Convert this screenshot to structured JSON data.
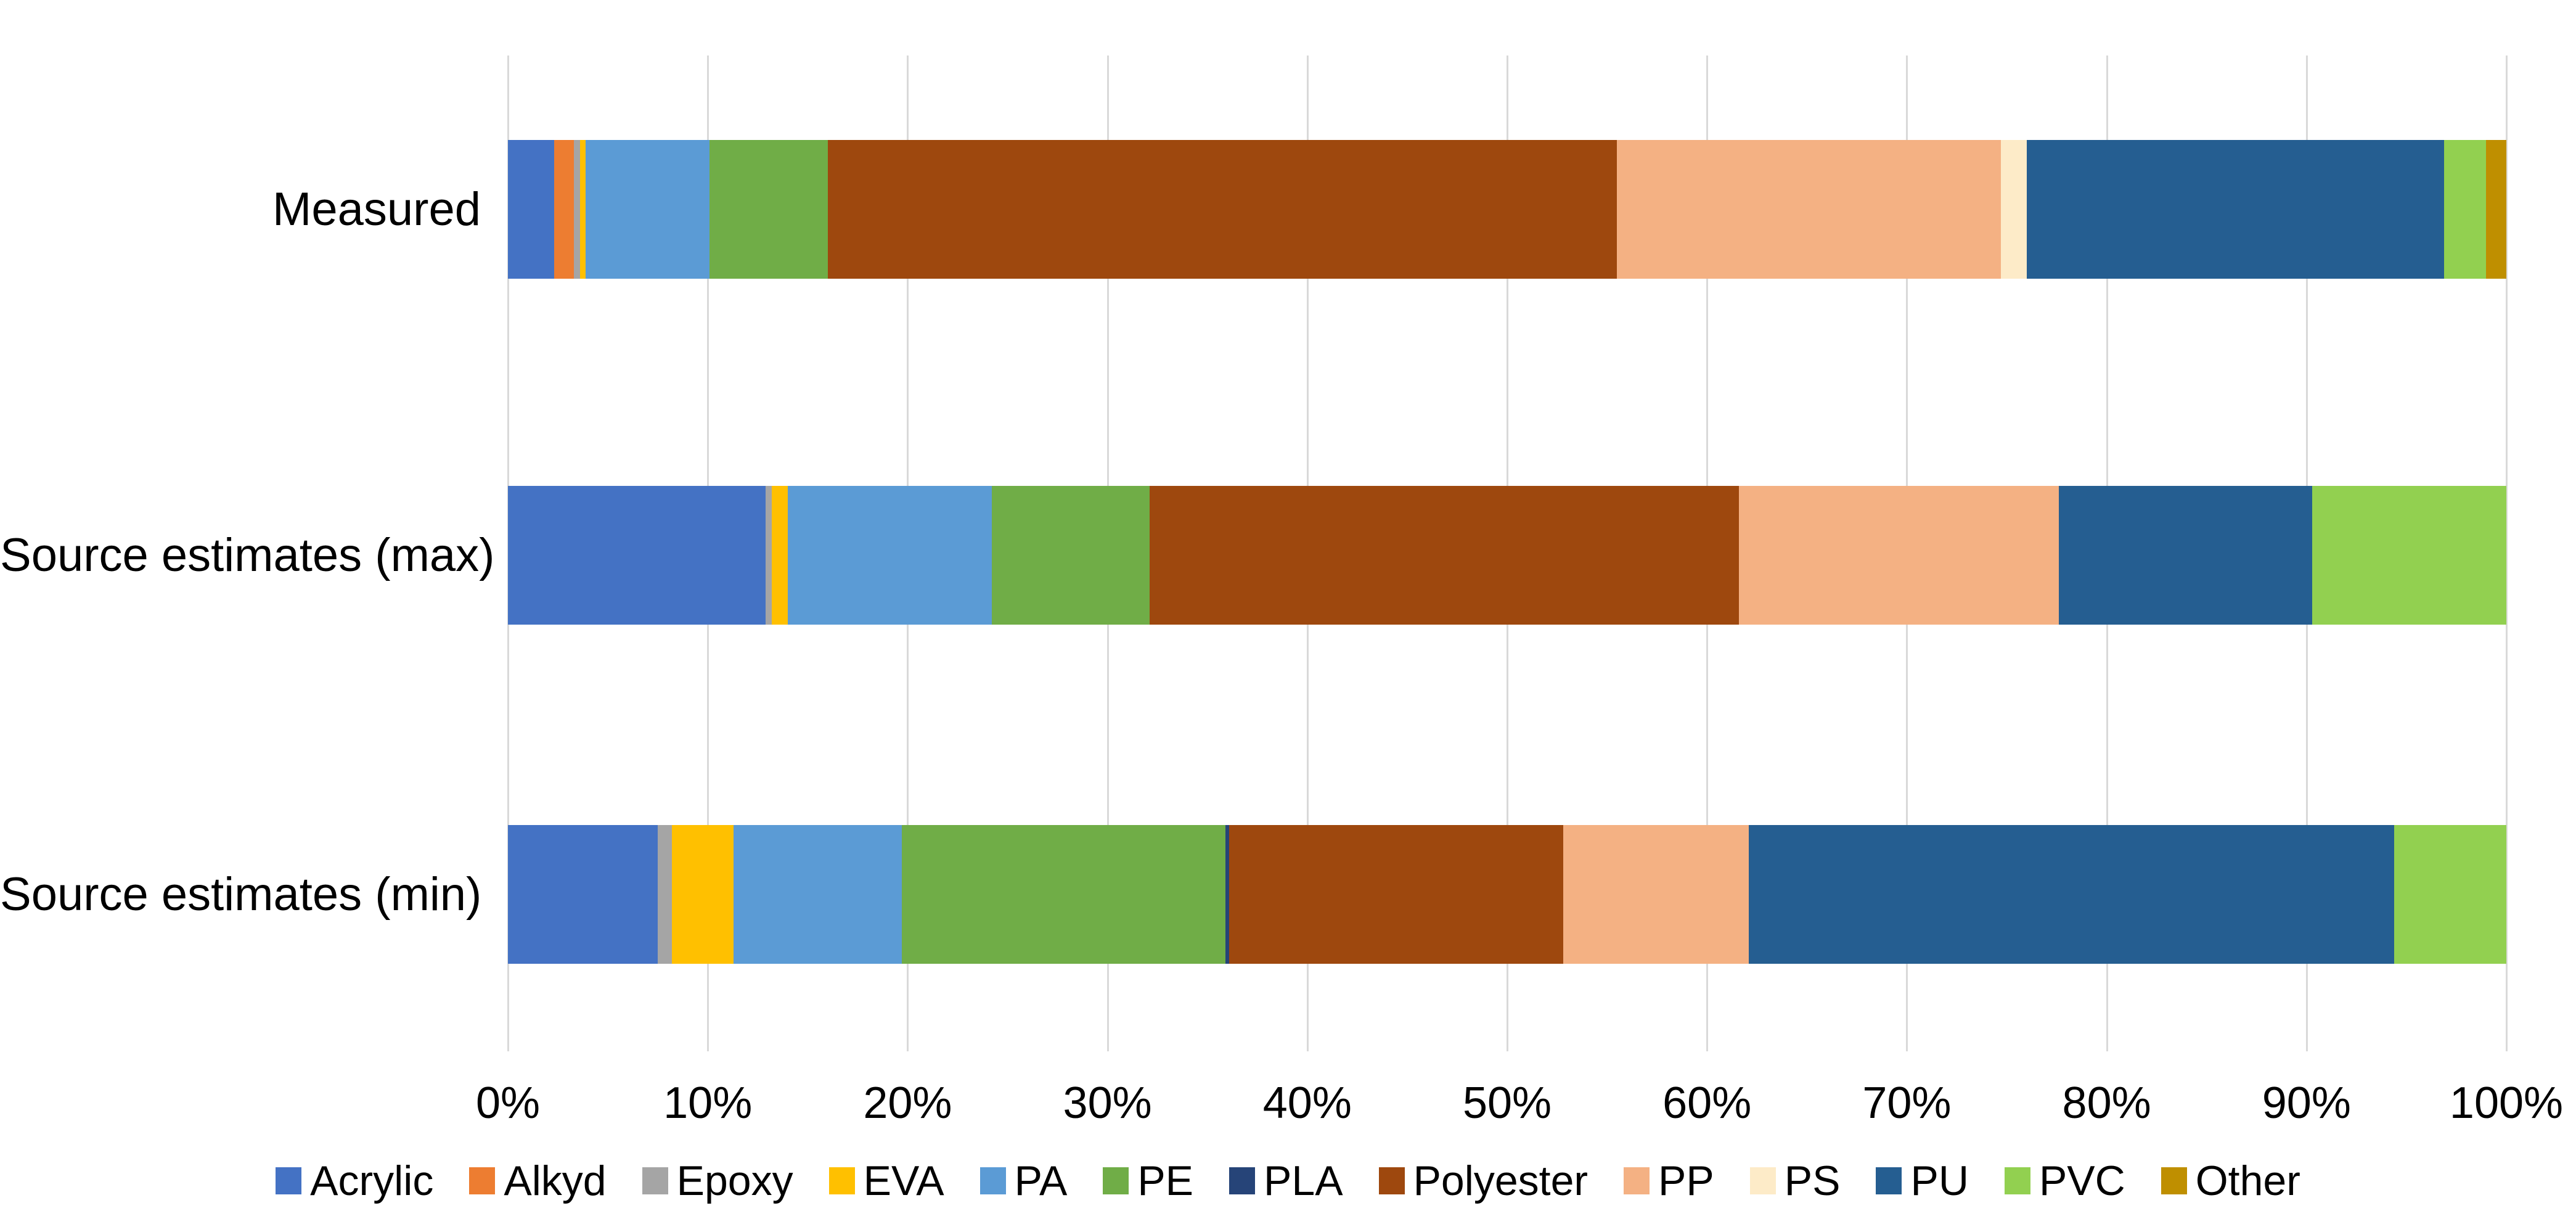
{
  "chart_data": {
    "type": "bar",
    "orientation": "horizontal-stacked",
    "unit": "%",
    "title": "",
    "xlabel": "",
    "ylabel": "",
    "categories": [
      "Measured",
      "Source estimates (max)",
      "Source estimates (min)"
    ],
    "series": [
      {
        "name": "Acrylic",
        "color": "#4472C4",
        "values": [
          2.3,
          12.9,
          7.5
        ]
      },
      {
        "name": "Alkyd",
        "color": "#ED7D31",
        "values": [
          1.0,
          0,
          0
        ]
      },
      {
        "name": "Epoxy",
        "color": "#A5A5A5",
        "values": [
          0.3,
          0.3,
          0.7
        ]
      },
      {
        "name": "EVA",
        "color": "#FFC000",
        "values": [
          0.3,
          0.8,
          3.1
        ]
      },
      {
        "name": "PA",
        "color": "#5B9BD5",
        "values": [
          6.2,
          10.2,
          8.4
        ]
      },
      {
        "name": "PE",
        "color": "#70AD47",
        "values": [
          5.9,
          7.9,
          16.2
        ]
      },
      {
        "name": "PLA",
        "color": "#264478",
        "values": [
          0,
          0,
          0.2
        ]
      },
      {
        "name": "Polyester",
        "color": "#9E480E",
        "values": [
          39.5,
          29.5,
          16.7
        ]
      },
      {
        "name": "PP",
        "color": "#F4B183",
        "values": [
          19.2,
          16.0,
          9.3
        ]
      },
      {
        "name": "PS",
        "color": "#FDEBC8",
        "values": [
          1.3,
          0,
          0
        ]
      },
      {
        "name": "PU",
        "color": "#255E91",
        "values": [
          20.9,
          12.7,
          32.3
        ]
      },
      {
        "name": "PVC",
        "color": "#92D050",
        "values": [
          2.1,
          9.7,
          5.6
        ]
      },
      {
        "name": "Other",
        "color": "#BF8F00",
        "values": [
          1.0,
          0,
          0
        ]
      }
    ],
    "x_axis": {
      "min": 0,
      "max": 100,
      "tick_step": 10,
      "ticks": [
        "0%",
        "10%",
        "20%",
        "30%",
        "40%",
        "50%",
        "60%",
        "70%",
        "80%",
        "90%",
        "100%"
      ]
    },
    "legend_position": "bottom",
    "grid": true,
    "gridline_color": "#D9D9D9",
    "background": "#FFFFFF"
  }
}
